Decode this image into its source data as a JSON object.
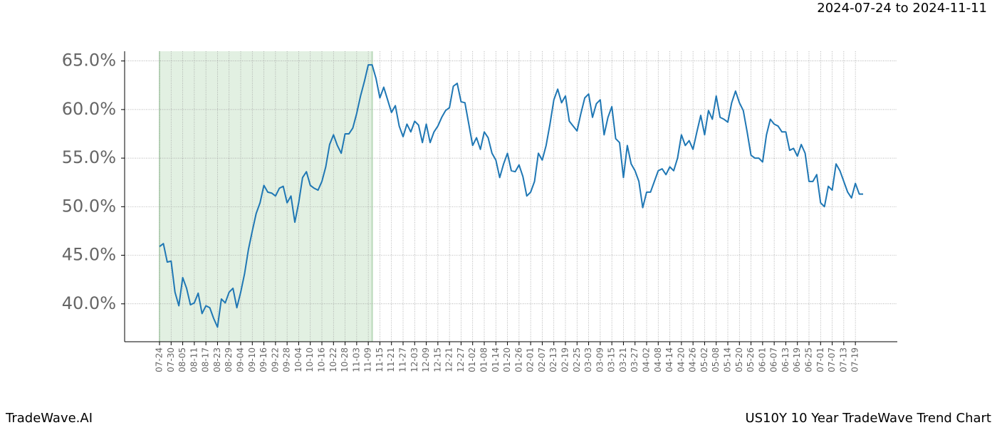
{
  "chart_data": {
    "type": "line",
    "header": "2024-07-24 to 2024-11-11",
    "brand": "TradeWave.AI",
    "title": "US10Y 10 Year TradeWave Trend Chart",
    "categories": [
      "07-24",
      null,
      null,
      "07-30",
      null,
      null,
      "08-05",
      null,
      null,
      "08-11",
      null,
      null,
      "08-17",
      null,
      null,
      "08-23",
      null,
      null,
      "08-29",
      null,
      null,
      "09-04",
      null,
      null,
      "09-10",
      null,
      null,
      "09-16",
      null,
      null,
      "09-22",
      null,
      null,
      "09-28",
      null,
      null,
      "10-04",
      null,
      null,
      "10-10",
      null,
      null,
      "10-16",
      null,
      null,
      "10-22",
      null,
      null,
      "10-28",
      null,
      null,
      "11-03",
      null,
      null,
      "11-09",
      null,
      null,
      "11-15",
      null,
      null,
      "11-21",
      null,
      null,
      "11-27",
      null,
      null,
      "12-03",
      null,
      null,
      "12-09",
      null,
      null,
      "12-15",
      null,
      null,
      "12-21",
      null,
      null,
      "12-27",
      null,
      null,
      "01-02",
      null,
      null,
      "01-08",
      null,
      null,
      "01-14",
      null,
      null,
      "01-20",
      null,
      null,
      "01-26",
      null,
      null,
      "02-01",
      null,
      null,
      "02-07",
      null,
      null,
      "02-13",
      null,
      null,
      "02-19",
      null,
      null,
      "02-25",
      null,
      null,
      "03-03",
      null,
      null,
      "03-09",
      null,
      null,
      "03-15",
      null,
      null,
      "03-21",
      null,
      null,
      "03-27",
      null,
      null,
      "04-02",
      null,
      null,
      "04-08",
      null,
      null,
      "04-14",
      null,
      null,
      "04-20",
      null,
      null,
      "04-26",
      null,
      null,
      "05-02",
      null,
      null,
      "05-08",
      null,
      null,
      "05-14",
      null,
      null,
      "05-20",
      null,
      null,
      "05-26",
      null,
      null,
      "06-01",
      null,
      null,
      "06-07",
      null,
      null,
      "06-13",
      null,
      null,
      "06-19",
      null,
      null,
      "06-25",
      null,
      null,
      "07-01",
      null,
      null,
      "07-07",
      null,
      null,
      "07-13",
      null,
      null,
      "07-19",
      null,
      null
    ],
    "series": [
      {
        "name": "US10Y",
        "color": "#1f77b4",
        "values": [
          45.9,
          46.2,
          44.3,
          44.4,
          41.2,
          39.8,
          42.7,
          41.6,
          39.9,
          40.1,
          41.1,
          39.0,
          39.8,
          39.6,
          38.5,
          37.6,
          40.5,
          40.1,
          41.2,
          41.6,
          39.6,
          41.2,
          43.1,
          45.6,
          47.5,
          49.3,
          50.4,
          52.2,
          51.5,
          51.4,
          51.1,
          51.9,
          52.1,
          50.4,
          51.1,
          48.4,
          50.4,
          53.0,
          53.6,
          52.2,
          51.9,
          51.7,
          52.6,
          54.1,
          56.4,
          57.4,
          56.3,
          55.5,
          57.5,
          57.5,
          58.1,
          59.6,
          61.4,
          62.9,
          64.6,
          64.6,
          63.2,
          61.2,
          62.3,
          61.0,
          59.7,
          60.4,
          58.3,
          57.2,
          58.5,
          57.7,
          58.8,
          58.4,
          56.6,
          58.5,
          56.6,
          57.7,
          58.3,
          59.2,
          59.9,
          60.2,
          62.4,
          62.7,
          60.8,
          60.7,
          58.5,
          56.3,
          57.1,
          55.9,
          57.7,
          57.1,
          55.5,
          54.8,
          53.0,
          54.4,
          55.5,
          53.7,
          53.6,
          54.3,
          53.1,
          51.1,
          51.5,
          52.6,
          55.5,
          54.8,
          56.3,
          58.5,
          61.0,
          62.1,
          60.7,
          61.4,
          58.8,
          58.3,
          57.8,
          59.6,
          61.2,
          61.6,
          59.2,
          60.6,
          61.0,
          57.4,
          59.2,
          60.3,
          57.0,
          56.6,
          53.0,
          56.3,
          54.4,
          53.7,
          52.6,
          49.9,
          51.5,
          51.5,
          52.6,
          53.7,
          53.9,
          53.3,
          54.1,
          53.7,
          55.0,
          57.4,
          56.3,
          56.8,
          55.9,
          57.7,
          59.4,
          57.4,
          59.9,
          59.0,
          61.4,
          59.2,
          59.0,
          58.7,
          60.7,
          61.9,
          60.7,
          59.9,
          57.7,
          55.3,
          55.0,
          55.0,
          54.6,
          57.4,
          59.0,
          58.5,
          58.3,
          57.7,
          57.7,
          55.8,
          56.0,
          55.2,
          56.4,
          55.5,
          52.6,
          52.6,
          53.3,
          50.4,
          50.0,
          52.1,
          51.7,
          54.4,
          53.7,
          52.6,
          51.5,
          50.9,
          52.4,
          51.3,
          51.3
        ]
      }
    ],
    "ylim": [
      36.1,
      66.0
    ],
    "yticks": [
      {
        "value": 40,
        "label": "40.0%"
      },
      {
        "value": 45,
        "label": "45.0%"
      },
      {
        "value": 50,
        "label": "50.0%"
      },
      {
        "value": 55,
        "label": "55.0%"
      },
      {
        "value": 60,
        "label": "60.0%"
      },
      {
        "value": 65,
        "label": "65.0%"
      }
    ],
    "grid": true,
    "highlight": {
      "from": 0,
      "to": 55,
      "color": "#d5ead5"
    }
  }
}
